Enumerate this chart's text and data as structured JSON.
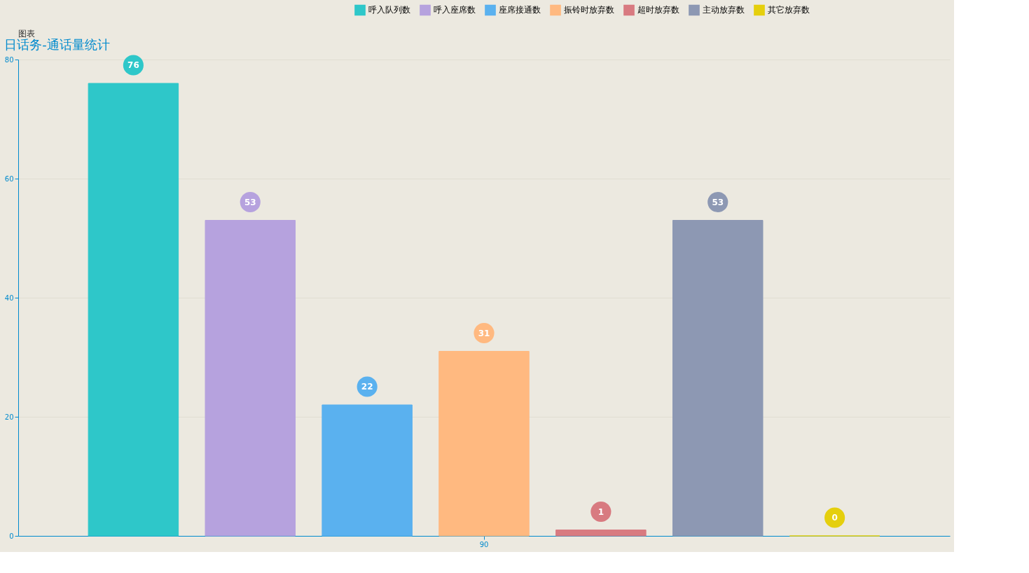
{
  "chart_data": {
    "type": "bar",
    "title": "日话务-通话量统计",
    "annotations": [
      "图表"
    ],
    "categories": [
      "90"
    ],
    "series": [
      {
        "name": "呼入队列数",
        "color": "#2ec7c9",
        "values": [
          76
        ]
      },
      {
        "name": "呼入座席数",
        "color": "#b6a2de",
        "values": [
          53
        ]
      },
      {
        "name": "座席接通数",
        "color": "#5ab1ef",
        "values": [
          22
        ]
      },
      {
        "name": "振铃时放弃数",
        "color": "#ffb980",
        "values": [
          31
        ]
      },
      {
        "name": "超时放弃数",
        "color": "#d87a80",
        "values": [
          1
        ]
      },
      {
        "name": "主动放弃数",
        "color": "#8d98b3",
        "values": [
          53
        ]
      },
      {
        "name": "其它放弃数",
        "color": "#e5cf0d",
        "values": [
          0
        ]
      }
    ],
    "ylim": [
      0,
      80
    ],
    "yticks": [
      0,
      20,
      40,
      60,
      80
    ],
    "grid": "y",
    "legend": "top",
    "data_labels": true
  }
}
